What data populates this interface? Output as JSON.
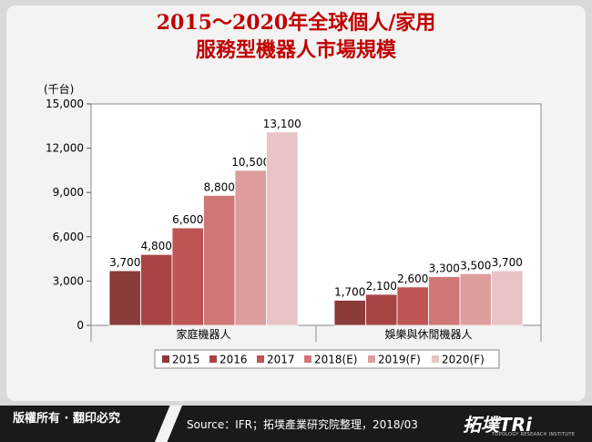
{
  "title_line1": "2015～2020年全球個人/家用",
  "title_line2": "服務型機器人市場規模",
  "footer": {
    "rights": "版權所有 · 翻印必究",
    "source": "Source：IFR；拓墣產業研究院整理，2018/03",
    "logo": "拓墣TRi",
    "logo_sub": "TOPOLOGY RESEARCH INSTITUTE"
  },
  "chart_data": {
    "type": "bar",
    "unit_label": "(千台)",
    "categories": [
      "家庭機器人",
      "娛樂與休閒機器人"
    ],
    "series": [
      {
        "name": "2015",
        "color": "#8b3a3a",
        "values": [
          3700,
          1700
        ]
      },
      {
        "name": "2016",
        "color": "#a94444",
        "values": [
          4800,
          2100
        ]
      },
      {
        "name": "2017",
        "color": "#bf5454",
        "values": [
          6600,
          2600
        ]
      },
      {
        "name": "2018(E)",
        "color": "#cf7676",
        "values": [
          8800,
          3300
        ]
      },
      {
        "name": "2019(F)",
        "color": "#dd9d9d",
        "values": [
          10500,
          3500
        ]
      },
      {
        "name": "2020(F)",
        "color": "#e9c3c6",
        "values": [
          13100,
          3700
        ]
      }
    ],
    "data_labels": [
      [
        "3,700",
        "4,800",
        "6,600",
        "8,800",
        "10,500",
        "13,100"
      ],
      [
        "1,700",
        "2,100",
        "2,600",
        "3,300",
        "3,500",
        "3,700"
      ]
    ],
    "yticks": [
      0,
      3000,
      6000,
      9000,
      12000,
      15000
    ],
    "ytick_labels": [
      "0",
      "3,000",
      "6,000",
      "9,000",
      "12,000",
      "15,000"
    ],
    "ylim": [
      0,
      15000
    ],
    "legend_position": "bottom",
    "grid": false
  }
}
